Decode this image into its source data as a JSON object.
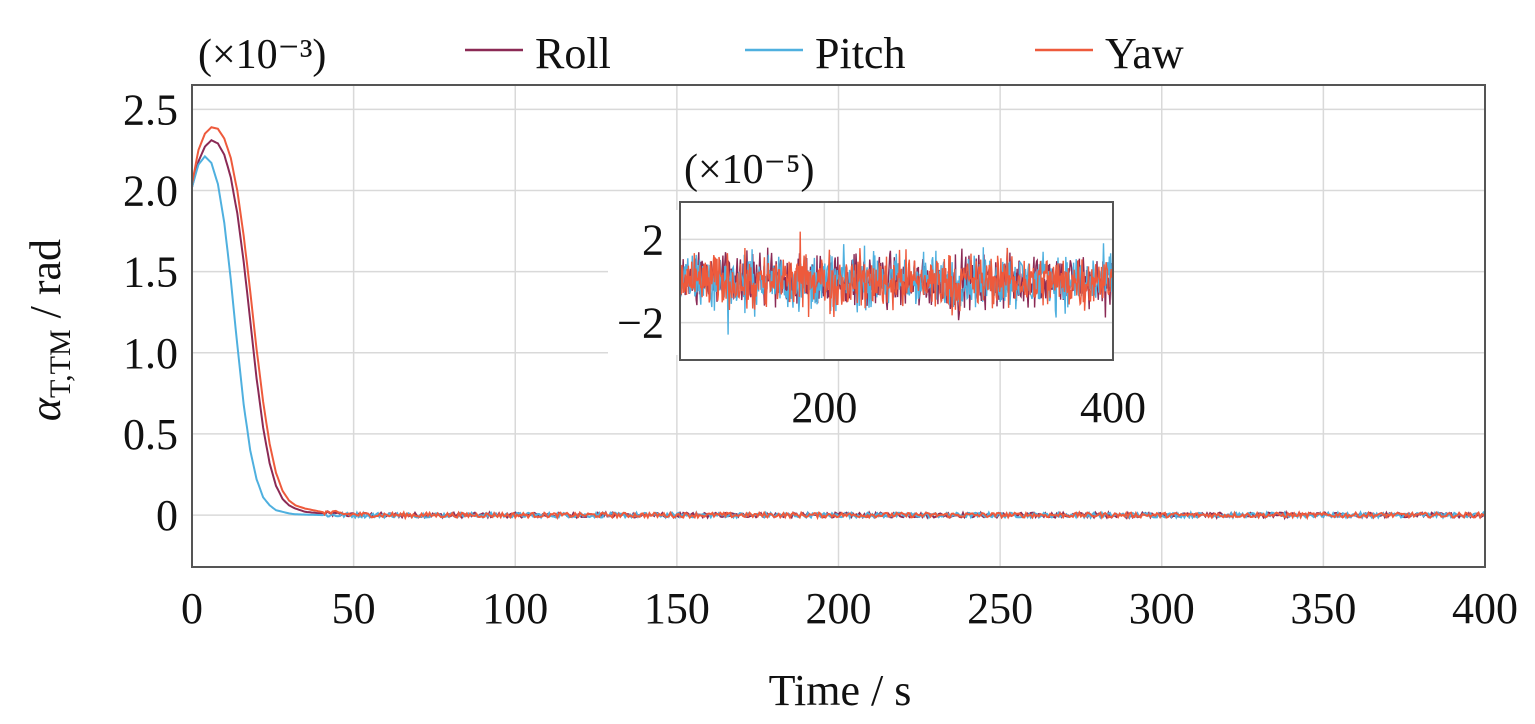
{
  "chart_data": [
    {
      "type": "line",
      "scale_note": "(×10⁻³)",
      "xlabel": "Time / s",
      "ylabel_main": "α",
      "ylabel_sub": "T,TM",
      "ylabel_unit": " / rad",
      "xlim": [
        0,
        400
      ],
      "ylim": [
        -0.32,
        2.65
      ],
      "grid": true,
      "legend_position": "top",
      "xticks": [
        0,
        50,
        100,
        150,
        200,
        250,
        300,
        350,
        400
      ],
      "yticks": [
        0,
        0.5,
        1.0,
        1.5,
        2.0,
        2.5
      ],
      "ytick_labels": [
        "0",
        "0.5",
        "1.0",
        "1.5",
        "2.0",
        "2.5"
      ],
      "series": [
        {
          "name": "Roll",
          "color": "#8b2a55",
          "x": [
            0,
            2,
            4,
            6,
            8,
            10,
            12,
            14,
            16,
            18,
            20,
            22,
            24,
            26,
            28,
            30,
            32,
            35,
            40,
            45,
            50,
            60,
            80,
            100,
            150,
            200,
            250,
            300,
            350,
            400
          ],
          "y": [
            2.02,
            2.18,
            2.27,
            2.31,
            2.29,
            2.22,
            2.08,
            1.86,
            1.56,
            1.2,
            0.84,
            0.54,
            0.32,
            0.18,
            0.1,
            0.06,
            0.04,
            0.02,
            0.01,
            0.005,
            0,
            0,
            0,
            0,
            0,
            0,
            0,
            0,
            0,
            0
          ]
        },
        {
          "name": "Pitch",
          "color": "#4fb0df",
          "x": [
            0,
            2,
            4,
            6,
            8,
            10,
            12,
            14,
            16,
            18,
            20,
            22,
            24,
            26,
            28,
            30,
            32,
            35,
            40,
            45,
            50,
            60,
            80,
            100,
            150,
            200,
            250,
            300,
            350,
            400
          ],
          "y": [
            2.02,
            2.16,
            2.21,
            2.17,
            2.04,
            1.8,
            1.45,
            1.05,
            0.68,
            0.4,
            0.22,
            0.11,
            0.06,
            0.03,
            0.02,
            0.01,
            0.005,
            0.003,
            0,
            0,
            0,
            0,
            0,
            0,
            0,
            0,
            0,
            0,
            0,
            0
          ]
        },
        {
          "name": "Yaw",
          "color": "#ee5a3c",
          "x": [
            0,
            2,
            4,
            6,
            8,
            10,
            12,
            14,
            16,
            18,
            20,
            22,
            24,
            26,
            28,
            30,
            32,
            35,
            40,
            45,
            50,
            60,
            80,
            100,
            150,
            200,
            250,
            300,
            350,
            400
          ],
          "y": [
            2.04,
            2.25,
            2.35,
            2.39,
            2.38,
            2.32,
            2.2,
            2.0,
            1.72,
            1.38,
            1.02,
            0.7,
            0.44,
            0.26,
            0.15,
            0.09,
            0.06,
            0.04,
            0.02,
            0.01,
            0.003,
            0,
            0,
            0,
            0,
            0,
            0,
            0,
            0,
            0
          ]
        }
      ]
    },
    {
      "type": "line",
      "scale_note": "(×10⁻⁵)",
      "xlim": [
        100,
        400
      ],
      "ylim": [
        -3.8,
        3.8
      ],
      "grid": true,
      "xticks": [
        200,
        400
      ],
      "yticks": [
        -2,
        2
      ],
      "ytick_labels": [
        "−2",
        "2"
      ],
      "noise_amplitude": 1.6,
      "series_names": [
        "Roll",
        "Pitch",
        "Yaw"
      ]
    }
  ]
}
